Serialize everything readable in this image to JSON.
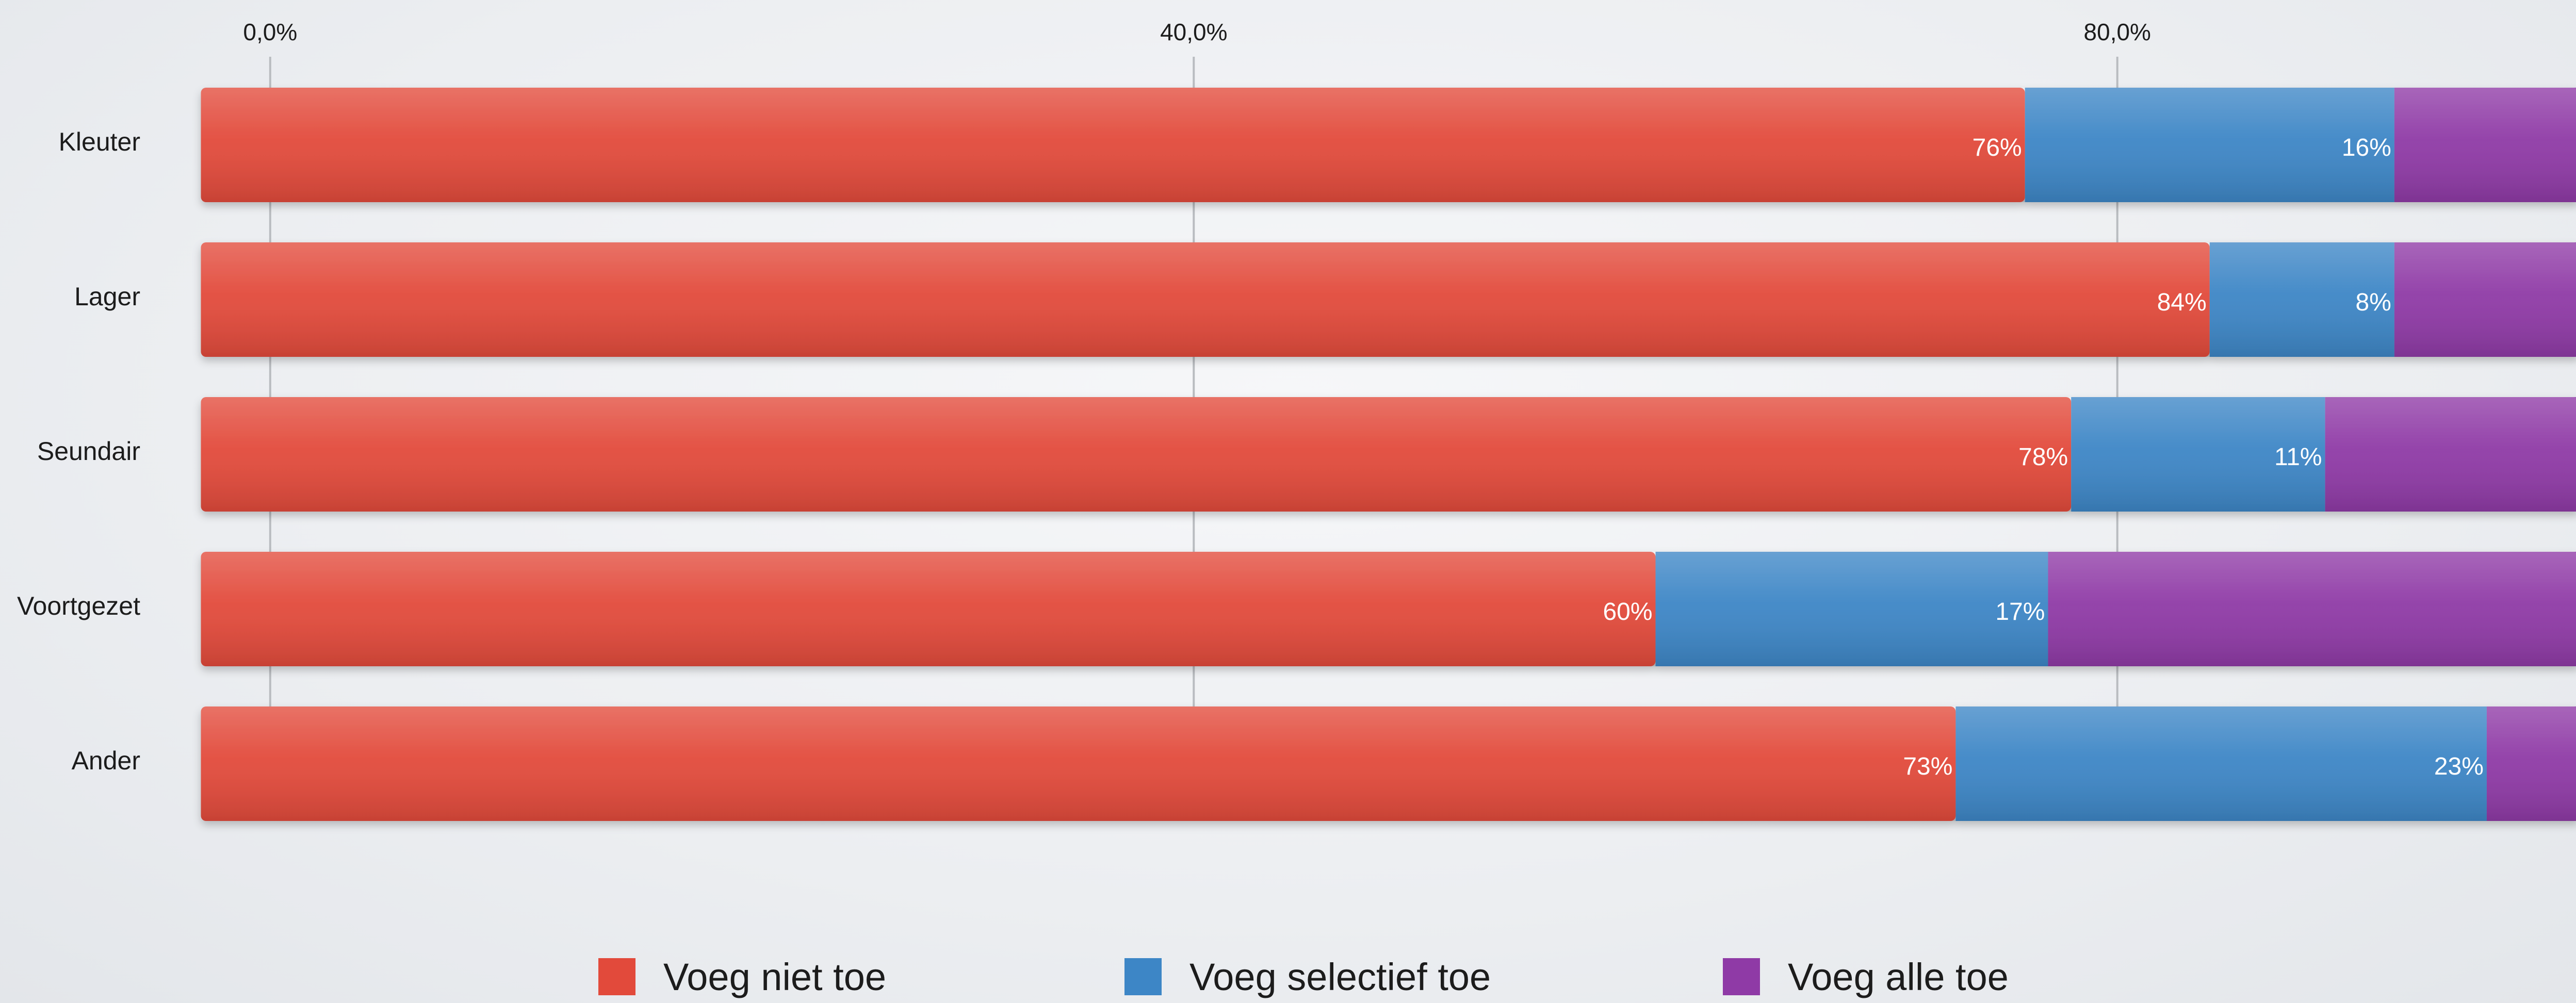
{
  "chart_data": {
    "type": "bar",
    "orientation": "horizontal",
    "stacked": true,
    "categories": [
      "Kleuter",
      "Lager",
      "Seundair",
      "Voortgezet",
      "Ander"
    ],
    "series": [
      {
        "name": "Voeg niet toe",
        "color": "#e24a3b",
        "values": [
          76,
          84,
          78,
          60,
          73
        ],
        "labels": [
          "76%",
          "84%",
          "78%",
          "60%",
          "73%"
        ]
      },
      {
        "name": "Voeg selectief toe",
        "color": "#3d86c6",
        "values": [
          16,
          8,
          11,
          17,
          23
        ],
        "labels": [
          "16%",
          "8%",
          "11%",
          "17%",
          "23%"
        ]
      },
      {
        "name": "Voeg alle toe",
        "color": "#8f3aa6",
        "values": [
          8,
          8,
          11,
          23,
          4
        ],
        "labels": [
          "",
          "",
          "",
          "",
          ""
        ]
      }
    ],
    "x_ticks": [
      "0,0%",
      "40,0%",
      "80,0%"
    ],
    "x_tick_values": [
      0,
      40,
      80
    ],
    "xlim": [
      -5,
      100
    ],
    "grid": true,
    "legend_position": "bottom"
  }
}
